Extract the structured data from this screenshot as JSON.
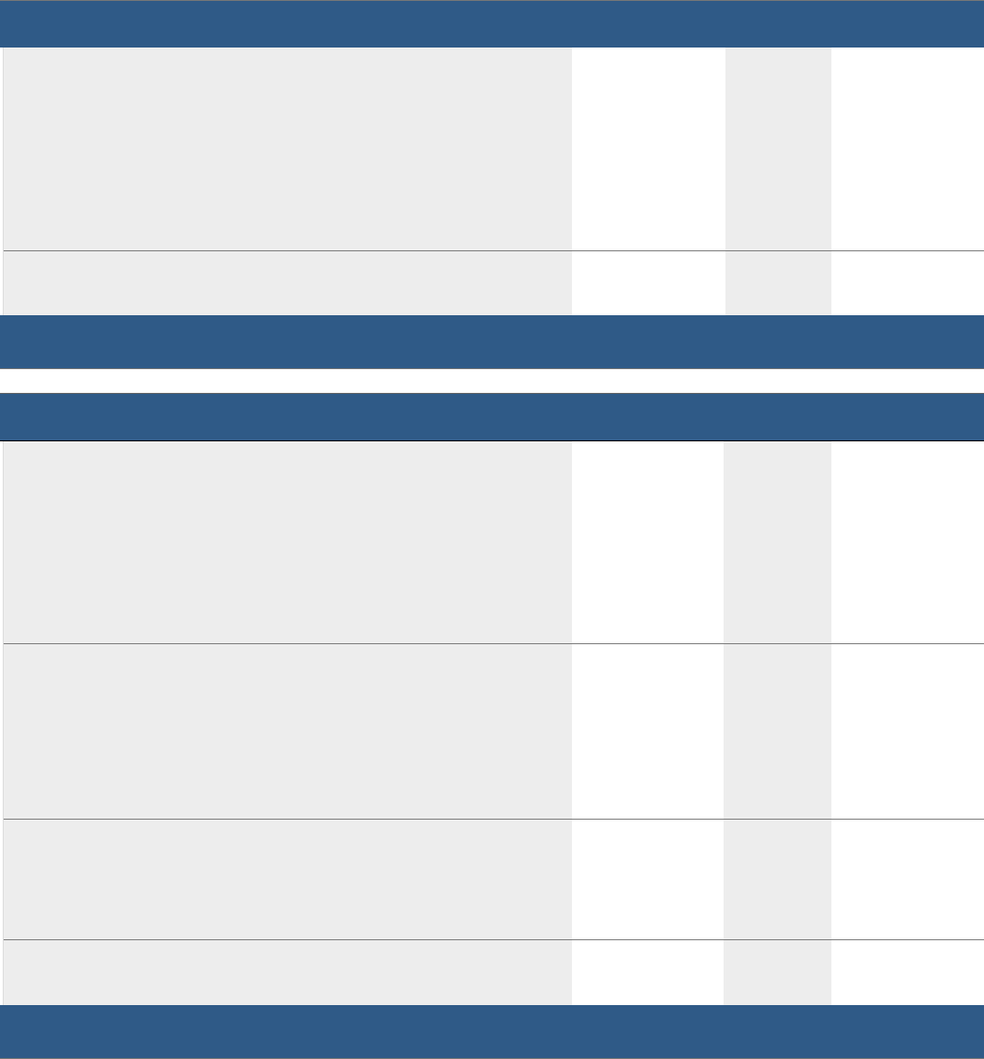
{
  "colors": {
    "header": "#2f5a87",
    "shaded_column": "#ededed",
    "row_divider": "#7a7a7a"
  },
  "tables": [
    {
      "header_text": "",
      "rows": [
        [
          "",
          "",
          "",
          ""
        ],
        [
          "",
          "",
          "",
          ""
        ]
      ],
      "footer_text": ""
    },
    {
      "header_text": "",
      "rows": [
        [
          "",
          "",
          "",
          ""
        ],
        [
          "",
          "",
          "",
          ""
        ],
        [
          "",
          "",
          "",
          ""
        ],
        [
          "",
          "",
          "",
          ""
        ]
      ],
      "footer_text": ""
    }
  ]
}
